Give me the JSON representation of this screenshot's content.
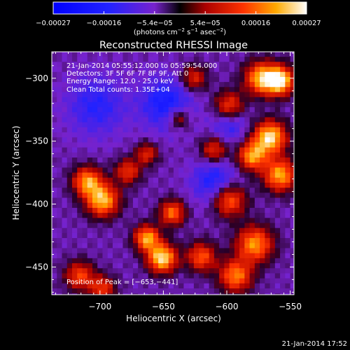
{
  "chart_data": {
    "type": "heatmap",
    "title": "Reconstructed RHESSI Image",
    "xlabel": "Heliocentric X (arcsec)",
    "ylabel": "Heliocentric Y (arcsec)",
    "xlim": [
      -738,
      -547
    ],
    "ylim": [
      -472,
      -279
    ],
    "x_ticks": [
      -700,
      -650,
      -600,
      -550
    ],
    "y_ticks": [
      -450,
      -400,
      -350,
      -300
    ],
    "x_tick_labels": [
      "−700",
      "−650",
      "−600",
      "−550"
    ],
    "y_tick_labels": [
      "−450",
      "−400",
      "−350",
      "−300"
    ],
    "colorbar": {
      "range": [
        -0.00027,
        0.00027
      ],
      "tick_labels": [
        "−0.00027",
        "−0.00016",
        "−5.4e−05",
        "5.4e−05",
        "0.00016",
        "0.00027"
      ],
      "units_text": "(photons cm",
      "units_exp1": "−2",
      "units_mid": " s",
      "units_exp2": "−1",
      "units_end": " asec",
      "units_exp3": "−2",
      "units_close": ")"
    },
    "annotations": {
      "time": "21-Jan-2014 05:55:12.000 to 05:59:54.000",
      "detectors": "Detectors: 3F 5F 6F 7F 8F 9F, Att 0",
      "energy": "Energy Range: 12.0 - 25.0 keV",
      "clean": "Clean     Total counts: 1.35E+04",
      "peak": "Position of Peak = [−653,−441]"
    },
    "peak": {
      "x": -653,
      "y": -441
    },
    "grid": false,
    "legend": "none",
    "sources": [
      {
        "x": -560,
        "y": -300,
        "amp": 1.0,
        "sigma": 8
      },
      {
        "x": -575,
        "y": -298,
        "amp": 0.85,
        "sigma": 9
      },
      {
        "x": -568,
        "y": -345,
        "amp": 1.0,
        "sigma": 9
      },
      {
        "x": -582,
        "y": -360,
        "amp": 0.8,
        "sigma": 8
      },
      {
        "x": -560,
        "y": -375,
        "amp": 0.85,
        "sigma": 9
      },
      {
        "x": -600,
        "y": -320,
        "amp": 0.6,
        "sigma": 8
      },
      {
        "x": -612,
        "y": -355,
        "amp": 0.55,
        "sigma": 7
      },
      {
        "x": -600,
        "y": -395,
        "amp": 0.7,
        "sigma": 9
      },
      {
        "x": -580,
        "y": -430,
        "amp": 0.8,
        "sigma": 10
      },
      {
        "x": -595,
        "y": -455,
        "amp": 0.75,
        "sigma": 9
      },
      {
        "x": -622,
        "y": -440,
        "amp": 0.65,
        "sigma": 8
      },
      {
        "x": -653,
        "y": -441,
        "amp": 1.0,
        "sigma": 8
      },
      {
        "x": -665,
        "y": -425,
        "amp": 0.85,
        "sigma": 7
      },
      {
        "x": -645,
        "y": -405,
        "amp": 0.7,
        "sigma": 7
      },
      {
        "x": -700,
        "y": -395,
        "amp": 0.9,
        "sigma": 9
      },
      {
        "x": -712,
        "y": -380,
        "amp": 0.8,
        "sigma": 8
      },
      {
        "x": -680,
        "y": -372,
        "amp": 0.55,
        "sigma": 7
      },
      {
        "x": -718,
        "y": -455,
        "amp": 0.6,
        "sigma": 8
      },
      {
        "x": -700,
        "y": -465,
        "amp": 0.55,
        "sigma": 7
      },
      {
        "x": -665,
        "y": -358,
        "amp": 0.5,
        "sigma": 6
      },
      {
        "x": -640,
        "y": -330,
        "amp": 0.45,
        "sigma": 6
      },
      {
        "x": -628,
        "y": -298,
        "amp": 0.5,
        "sigma": 7
      },
      {
        "x": -650,
        "y": -318,
        "amp": -0.45,
        "sigma": 14
      },
      {
        "x": -705,
        "y": -320,
        "amp": -0.35,
        "sigma": 16
      },
      {
        "x": -612,
        "y": -380,
        "amp": -0.4,
        "sigma": 12
      },
      {
        "x": -600,
        "y": -335,
        "amp": -0.3,
        "sigma": 10
      }
    ]
  },
  "footer": {
    "timestamp": "21-Jan-2014 17:52"
  }
}
